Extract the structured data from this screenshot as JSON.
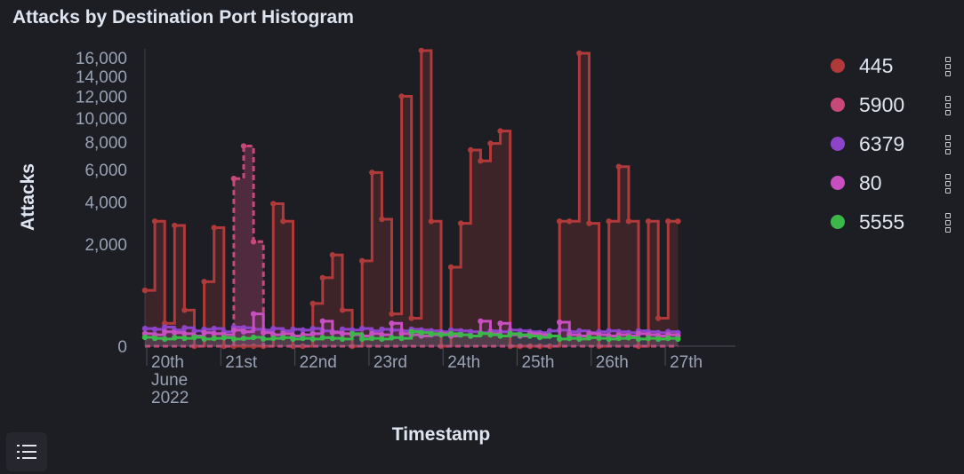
{
  "title": "Attacks by Destination Port Histogram",
  "toolbar": {
    "legend_toggle_icon": "list-icon"
  },
  "chart_data": {
    "type": "area",
    "title": "Attacks by Destination Port Histogram",
    "xlabel": "Timestamp",
    "ylabel": "Attacks",
    "y_scale": "sqrt",
    "ylim": [
      0,
      17000
    ],
    "y_ticks": [
      {
        "value": 0,
        "label": "0"
      },
      {
        "value": 2000,
        "label": "2,000"
      },
      {
        "value": 4000,
        "label": "4,000"
      },
      {
        "value": 6000,
        "label": "6,000"
      },
      {
        "value": 8000,
        "label": "8,000"
      },
      {
        "value": 10000,
        "label": "10,000"
      },
      {
        "value": 12000,
        "label": "12,000"
      },
      {
        "value": 14000,
        "label": "14,000"
      },
      {
        "value": 16000,
        "label": "16,000"
      }
    ],
    "x_ticks": [
      {
        "label": "20th",
        "sub": [
          "June",
          "2022"
        ]
      },
      {
        "label": "21st"
      },
      {
        "label": "22nd"
      },
      {
        "label": "23rd"
      },
      {
        "label": "24th"
      },
      {
        "label": "25th"
      },
      {
        "label": "26th"
      },
      {
        "label": "27th"
      }
    ],
    "x_start": "2022-06-19 21:00",
    "interval": "3h",
    "grid": false,
    "legend_position": "right",
    "series": [
      {
        "name": "445",
        "color": "#b03a3a",
        "values": [
          600,
          3000,
          100,
          2800,
          250,
          0,
          800,
          2700,
          0,
          0,
          0,
          0,
          0,
          3900,
          3000,
          0,
          0,
          350,
          900,
          1600,
          250,
          0,
          1400,
          5800,
          3100,
          200,
          12000,
          150,
          16800,
          3000,
          0,
          1200,
          2900,
          7400,
          6600,
          7900,
          8900,
          0,
          0,
          0,
          0,
          0,
          3000,
          3000,
          16500,
          2900,
          0,
          3000,
          6200,
          3000,
          0,
          3000,
          150,
          3000,
          3000
        ]
      },
      {
        "name": "5900",
        "color": "#c8487a",
        "values": [
          0,
          0,
          0,
          0,
          0,
          0,
          0,
          0,
          0,
          5400,
          7700,
          2100,
          0,
          0,
          0,
          0,
          0,
          0,
          0,
          0,
          0,
          0,
          0,
          0,
          0,
          0,
          0,
          0,
          0,
          0,
          0,
          0,
          0,
          0,
          0,
          0,
          0,
          0,
          0,
          0,
          0,
          0,
          0,
          0,
          0,
          0,
          0,
          0,
          0,
          0,
          0,
          0,
          0,
          0,
          0
        ]
      },
      {
        "name": "6379",
        "color": "#8e44c8",
        "values": [
          60,
          55,
          70,
          50,
          65,
          45,
          55,
          60,
          40,
          70,
          65,
          55,
          50,
          60,
          45,
          55,
          50,
          60,
          45,
          40,
          55,
          50,
          60,
          45,
          55,
          50,
          45,
          55,
          50,
          45,
          40,
          50,
          45,
          40,
          35,
          45,
          40,
          50,
          45,
          40,
          35,
          45,
          50,
          40,
          45,
          35,
          40,
          45,
          40,
          35,
          45,
          40,
          35,
          40,
          35
        ]
      },
      {
        "name": "80",
        "color": "#c84fbf",
        "values": [
          30,
          25,
          40,
          35,
          30,
          20,
          35,
          30,
          25,
          50,
          40,
          200,
          35,
          25,
          30,
          20,
          25,
          30,
          120,
          35,
          30,
          25,
          20,
          30,
          25,
          100,
          30,
          25,
          20,
          25,
          30,
          20,
          25,
          20,
          120,
          30,
          100,
          25,
          20,
          30,
          25,
          20,
          110,
          25,
          20,
          30,
          25,
          20,
          25,
          20,
          30,
          25,
          20,
          25,
          20
        ]
      },
      {
        "name": "5555",
        "color": "#3cb74a",
        "values": [
          15,
          12,
          10,
          14,
          12,
          15,
          10,
          12,
          14,
          10,
          12,
          15,
          10,
          12,
          14,
          10,
          12,
          10,
          14,
          12,
          10,
          30,
          10,
          12,
          10,
          14,
          12,
          40,
          35,
          30,
          25,
          30,
          25,
          20,
          30,
          25,
          20,
          30,
          25,
          20,
          15,
          20,
          10,
          12,
          10,
          14,
          12,
          10,
          12,
          14,
          10,
          12,
          10,
          12,
          10
        ]
      }
    ]
  }
}
